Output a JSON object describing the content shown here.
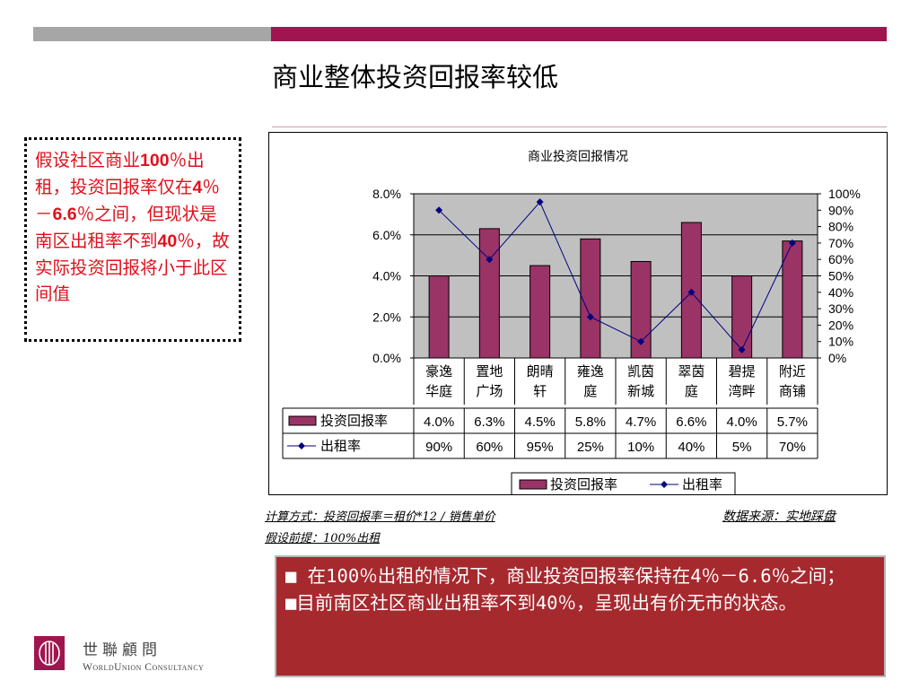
{
  "slide": {
    "title": "商业整体投资回报率较低",
    "note": [
      "假设社区商业",
      "100",
      "％出租，投资回报率仅在",
      "4",
      "％－",
      "6.6",
      "％之间，但现状是南区出租率不到",
      "40",
      "％，故实际投资回报将小于此区间值"
    ],
    "calc_note": "计算方式：投资回报率＝租价*12 / 销售单价",
    "assumption": "假设前提：100%出租",
    "source": "数据来源：实地踩盘",
    "summary": [
      "■ 在100％出租的情况下，商业投资回报率保持在4％－6.6％之间；",
      "■目前南区社区商业出租率不到40％，呈现出有价无市的状态。"
    ],
    "logo_cn": "世聯顧問",
    "logo_en": "WorldUnion Consultancy"
  },
  "colors": {
    "accent": "#a0154f",
    "bar": "#9a3366",
    "line": "#000080",
    "summary_bg": "#a6292e",
    "note_text": "#e0101c",
    "plot_bg": "#c0c0c0"
  },
  "chart_data": {
    "type": "bar",
    "title": "商业投资回报情况",
    "categories": [
      [
        "豪逸",
        "华庭"
      ],
      [
        "置地",
        "广场"
      ],
      [
        "朗晴",
        "轩"
      ],
      [
        "雍逸",
        "庭"
      ],
      [
        "凯茵",
        "新城"
      ],
      [
        "翠茵",
        "庭"
      ],
      [
        "碧提",
        "湾畔"
      ],
      [
        "附近",
        "商铺"
      ]
    ],
    "series": [
      {
        "name": "投资回报率",
        "type": "bar",
        "axis": "left",
        "values": [
          4.0,
          6.3,
          4.5,
          5.8,
          4.7,
          6.6,
          4.0,
          5.7
        ],
        "labels": [
          "4.0%",
          "6.3%",
          "4.5%",
          "5.8%",
          "4.7%",
          "6.6%",
          "4.0%",
          "5.7%"
        ]
      },
      {
        "name": "出租率",
        "type": "line",
        "axis": "right",
        "values": [
          90,
          60,
          95,
          25,
          10,
          40,
          5,
          70
        ],
        "labels": [
          "90%",
          "60%",
          "95%",
          "25%",
          "10%",
          "40%",
          "5%",
          "70%"
        ]
      }
    ],
    "y_left": {
      "range": [
        0,
        8
      ],
      "ticks": [
        "0.0%",
        "2.0%",
        "4.0%",
        "6.0%",
        "8.0%"
      ]
    },
    "y_right": {
      "range": [
        0,
        100
      ],
      "ticks": [
        "0%",
        "10%",
        "20%",
        "30%",
        "40%",
        "50%",
        "60%",
        "70%",
        "80%",
        "90%",
        "100%"
      ]
    },
    "grid": true,
    "legend": "bottom",
    "data_table": true
  }
}
